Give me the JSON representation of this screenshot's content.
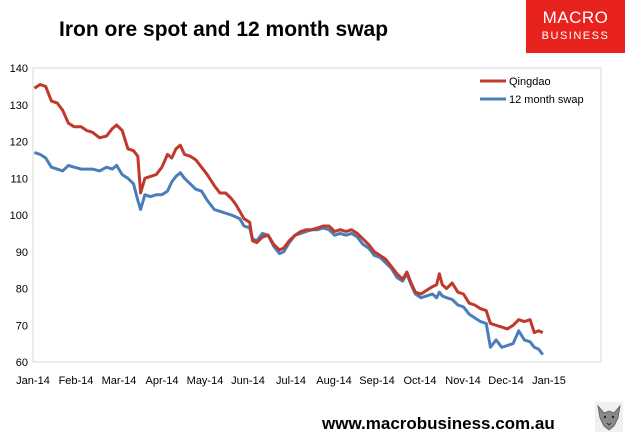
{
  "page": {
    "title": "Iron ore spot and 12 month swap",
    "logo_line1": "MACRO",
    "logo_line2": "BUSINESS",
    "website": "www.macrobusiness.com.au",
    "logo_color": "#e8221d"
  },
  "chart_data": {
    "type": "line",
    "title": "Iron ore spot and 12 month swap",
    "xlabel": "",
    "ylabel": "",
    "x_ticks": [
      "Jan-14",
      "Feb-14",
      "Mar-14",
      "Apr-14",
      "May-14",
      "Jun-14",
      "Jul-14",
      "Aug-14",
      "Sep-14",
      "Oct-14",
      "Nov-14",
      "Dec-14",
      "Jan-15"
    ],
    "xlim": [
      "2014-01-01",
      "2015-01-01"
    ],
    "y_ticks": [
      60,
      70,
      80,
      90,
      100,
      110,
      120,
      130,
      140
    ],
    "ylim": [
      60,
      140
    ],
    "grid": false,
    "legend": "top-right",
    "series": [
      {
        "name": "Qingdao",
        "color": "#c0392b",
        "points": [
          [
            "2014-01-02",
            134.5
          ],
          [
            "2014-01-06",
            135.5
          ],
          [
            "2014-01-10",
            135
          ],
          [
            "2014-01-14",
            131
          ],
          [
            "2014-01-18",
            130.5
          ],
          [
            "2014-01-22",
            128.5
          ],
          [
            "2014-01-26",
            125
          ],
          [
            "2014-01-30",
            124
          ],
          [
            "2014-02-04",
            124
          ],
          [
            "2014-02-08",
            123
          ],
          [
            "2014-02-12",
            122.5
          ],
          [
            "2014-02-17",
            121
          ],
          [
            "2014-02-22",
            121.5
          ],
          [
            "2014-02-26",
            123.5
          ],
          [
            "2014-03-01",
            124.5
          ],
          [
            "2014-03-05",
            123
          ],
          [
            "2014-03-09",
            118
          ],
          [
            "2014-03-13",
            117.5
          ],
          [
            "2014-03-16",
            116
          ],
          [
            "2014-03-18",
            106
          ],
          [
            "2014-03-21",
            110
          ],
          [
            "2014-03-25",
            110.5
          ],
          [
            "2014-03-29",
            111
          ],
          [
            "2014-04-02",
            113
          ],
          [
            "2014-04-06",
            116.5
          ],
          [
            "2014-04-09",
            115.5
          ],
          [
            "2014-04-12",
            118
          ],
          [
            "2014-04-15",
            119
          ],
          [
            "2014-04-18",
            116.5
          ],
          [
            "2014-04-22",
            116
          ],
          [
            "2014-04-26",
            115
          ],
          [
            "2014-04-30",
            113
          ],
          [
            "2014-05-04",
            111
          ],
          [
            "2014-05-09",
            108
          ],
          [
            "2014-05-13",
            106
          ],
          [
            "2014-05-17",
            106
          ],
          [
            "2014-05-21",
            104.5
          ],
          [
            "2014-05-24",
            103
          ],
          [
            "2014-05-27",
            101
          ],
          [
            "2014-05-30",
            99
          ],
          [
            "2014-06-03",
            98
          ],
          [
            "2014-06-05",
            93
          ],
          [
            "2014-06-08",
            92.5
          ],
          [
            "2014-06-12",
            94
          ],
          [
            "2014-06-16",
            94.5
          ],
          [
            "2014-06-20",
            92
          ],
          [
            "2014-06-24",
            90.5
          ],
          [
            "2014-06-27",
            91
          ],
          [
            "2014-07-01",
            93
          ],
          [
            "2014-07-05",
            94.5
          ],
          [
            "2014-07-09",
            95.5
          ],
          [
            "2014-07-13",
            96
          ],
          [
            "2014-07-17",
            96
          ],
          [
            "2014-07-21",
            96.5
          ],
          [
            "2014-07-25",
            97
          ],
          [
            "2014-07-29",
            97
          ],
          [
            "2014-08-02",
            95.5
          ],
          [
            "2014-08-06",
            96
          ],
          [
            "2014-08-10",
            95.5
          ],
          [
            "2014-08-14",
            96
          ],
          [
            "2014-08-18",
            95
          ],
          [
            "2014-08-22",
            93.5
          ],
          [
            "2014-08-26",
            92
          ],
          [
            "2014-08-30",
            90
          ],
          [
            "2014-09-03",
            89
          ],
          [
            "2014-09-07",
            88
          ],
          [
            "2014-09-11",
            86
          ],
          [
            "2014-09-15",
            84
          ],
          [
            "2014-09-19",
            82.5
          ],
          [
            "2014-09-22",
            84.5
          ],
          [
            "2014-09-25",
            81.5
          ],
          [
            "2014-09-28",
            79
          ],
          [
            "2014-10-02",
            78.5
          ],
          [
            "2014-10-06",
            79.5
          ],
          [
            "2014-10-10",
            80.5
          ],
          [
            "2014-10-13",
            81
          ],
          [
            "2014-10-15",
            84
          ],
          [
            "2014-10-17",
            81
          ],
          [
            "2014-10-20",
            80
          ],
          [
            "2014-10-24",
            81.5
          ],
          [
            "2014-10-28",
            79
          ],
          [
            "2014-11-01",
            78.5
          ],
          [
            "2014-11-05",
            76
          ],
          [
            "2014-11-09",
            75.5
          ],
          [
            "2014-11-13",
            74.5
          ],
          [
            "2014-11-17",
            74
          ],
          [
            "2014-11-20",
            70.5
          ],
          [
            "2014-11-24",
            70
          ],
          [
            "2014-11-28",
            69.5
          ],
          [
            "2014-12-02",
            69
          ],
          [
            "2014-12-06",
            70
          ],
          [
            "2014-12-10",
            71.5
          ],
          [
            "2014-12-14",
            71
          ],
          [
            "2014-12-18",
            71.5
          ],
          [
            "2014-12-21",
            68
          ],
          [
            "2014-12-24",
            68.5
          ],
          [
            "2014-12-27",
            68
          ]
        ]
      },
      {
        "name": "12 month swap",
        "color": "#4a7ebb",
        "points": [
          [
            "2014-01-02",
            117
          ],
          [
            "2014-01-06",
            116.5
          ],
          [
            "2014-01-10",
            115.5
          ],
          [
            "2014-01-14",
            113
          ],
          [
            "2014-01-18",
            112.5
          ],
          [
            "2014-01-22",
            112
          ],
          [
            "2014-01-26",
            113.5
          ],
          [
            "2014-01-30",
            113
          ],
          [
            "2014-02-04",
            112.5
          ],
          [
            "2014-02-08",
            112.5
          ],
          [
            "2014-02-12",
            112.5
          ],
          [
            "2014-02-17",
            112
          ],
          [
            "2014-02-22",
            113
          ],
          [
            "2014-02-26",
            112.5
          ],
          [
            "2014-03-01",
            113.5
          ],
          [
            "2014-03-05",
            111
          ],
          [
            "2014-03-09",
            110
          ],
          [
            "2014-03-13",
            108.5
          ],
          [
            "2014-03-16",
            104
          ],
          [
            "2014-03-18",
            101.5
          ],
          [
            "2014-03-21",
            105.5
          ],
          [
            "2014-03-25",
            105
          ],
          [
            "2014-03-29",
            105.5
          ],
          [
            "2014-04-02",
            105.5
          ],
          [
            "2014-04-06",
            106.5
          ],
          [
            "2014-04-09",
            109
          ],
          [
            "2014-04-12",
            110.5
          ],
          [
            "2014-04-15",
            111.5
          ],
          [
            "2014-04-18",
            110
          ],
          [
            "2014-04-22",
            108.5
          ],
          [
            "2014-04-26",
            107
          ],
          [
            "2014-04-30",
            106.5
          ],
          [
            "2014-05-04",
            104
          ],
          [
            "2014-05-09",
            101.5
          ],
          [
            "2014-05-13",
            101
          ],
          [
            "2014-05-17",
            100.5
          ],
          [
            "2014-05-21",
            100
          ],
          [
            "2014-05-24",
            99.5
          ],
          [
            "2014-05-27",
            99
          ],
          [
            "2014-05-30",
            97
          ],
          [
            "2014-06-03",
            96.5
          ],
          [
            "2014-06-05",
            93.5
          ],
          [
            "2014-06-08",
            93
          ],
          [
            "2014-06-12",
            95
          ],
          [
            "2014-06-16",
            94.5
          ],
          [
            "2014-06-20",
            91.5
          ],
          [
            "2014-06-24",
            89.5
          ],
          [
            "2014-06-27",
            90
          ],
          [
            "2014-07-01",
            92.5
          ],
          [
            "2014-07-05",
            94.5
          ],
          [
            "2014-07-09",
            95
          ],
          [
            "2014-07-13",
            95.5
          ],
          [
            "2014-07-17",
            96
          ],
          [
            "2014-07-21",
            96
          ],
          [
            "2014-07-25",
            96.5
          ],
          [
            "2014-07-29",
            96
          ],
          [
            "2014-08-02",
            94.5
          ],
          [
            "2014-08-06",
            95
          ],
          [
            "2014-08-10",
            94.5
          ],
          [
            "2014-08-14",
            95
          ],
          [
            "2014-08-18",
            94
          ],
          [
            "2014-08-22",
            92
          ],
          [
            "2014-08-26",
            91
          ],
          [
            "2014-08-30",
            89
          ],
          [
            "2014-09-03",
            88.5
          ],
          [
            "2014-09-07",
            87
          ],
          [
            "2014-09-11",
            85.5
          ],
          [
            "2014-09-15",
            83
          ],
          [
            "2014-09-19",
            82
          ],
          [
            "2014-09-22",
            84
          ],
          [
            "2014-09-25",
            81
          ],
          [
            "2014-09-28",
            78.5
          ],
          [
            "2014-10-02",
            77.5
          ],
          [
            "2014-10-06",
            78
          ],
          [
            "2014-10-10",
            78.5
          ],
          [
            "2014-10-13",
            77.5
          ],
          [
            "2014-10-15",
            79
          ],
          [
            "2014-10-17",
            78
          ],
          [
            "2014-10-20",
            77.5
          ],
          [
            "2014-10-24",
            77
          ],
          [
            "2014-10-28",
            75.5
          ],
          [
            "2014-11-01",
            75
          ],
          [
            "2014-11-05",
            73
          ],
          [
            "2014-11-09",
            72
          ],
          [
            "2014-11-13",
            71
          ],
          [
            "2014-11-17",
            70.5
          ],
          [
            "2014-11-20",
            64
          ],
          [
            "2014-11-24",
            66
          ],
          [
            "2014-11-28",
            64
          ],
          [
            "2014-12-02",
            64.5
          ],
          [
            "2014-12-06",
            65
          ],
          [
            "2014-12-10",
            68.5
          ],
          [
            "2014-12-14",
            66
          ],
          [
            "2014-12-18",
            65.5
          ],
          [
            "2014-12-21",
            64
          ],
          [
            "2014-12-24",
            63.5
          ],
          [
            "2014-12-27",
            62
          ]
        ]
      }
    ]
  }
}
